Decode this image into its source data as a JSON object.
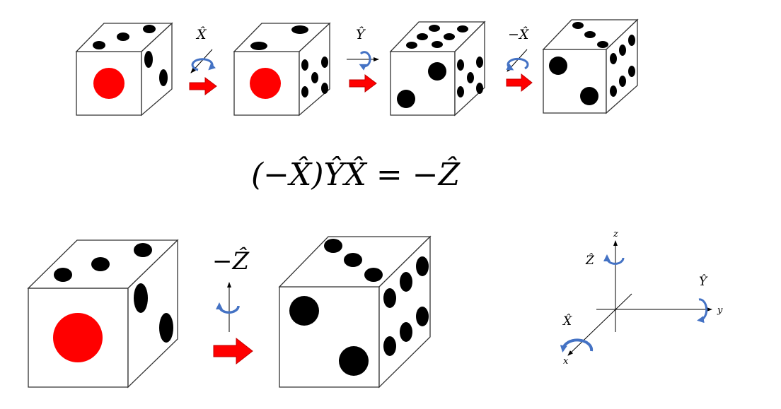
{
  "colors": {
    "red_pip": "#ff0000",
    "black_pip": "#000000",
    "arrow_red": "#ff0000",
    "arrow_dark": "#c00000",
    "rotation_blue": "#4472c4"
  },
  "top_row": {
    "op1_label": "X̂",
    "op2_label": "Ŷ",
    "op3_label": "−X̂"
  },
  "equation": {
    "text": "(−X̂)ŶX̂ = −Ẑ"
  },
  "bottom_row": {
    "op_label": "−Ẑ"
  },
  "axes": {
    "z_axis": "z",
    "y_axis": "y",
    "x_axis": "x",
    "z_rot": "Ẑ",
    "y_rot": "Ŷ",
    "x_rot": "X̂"
  }
}
